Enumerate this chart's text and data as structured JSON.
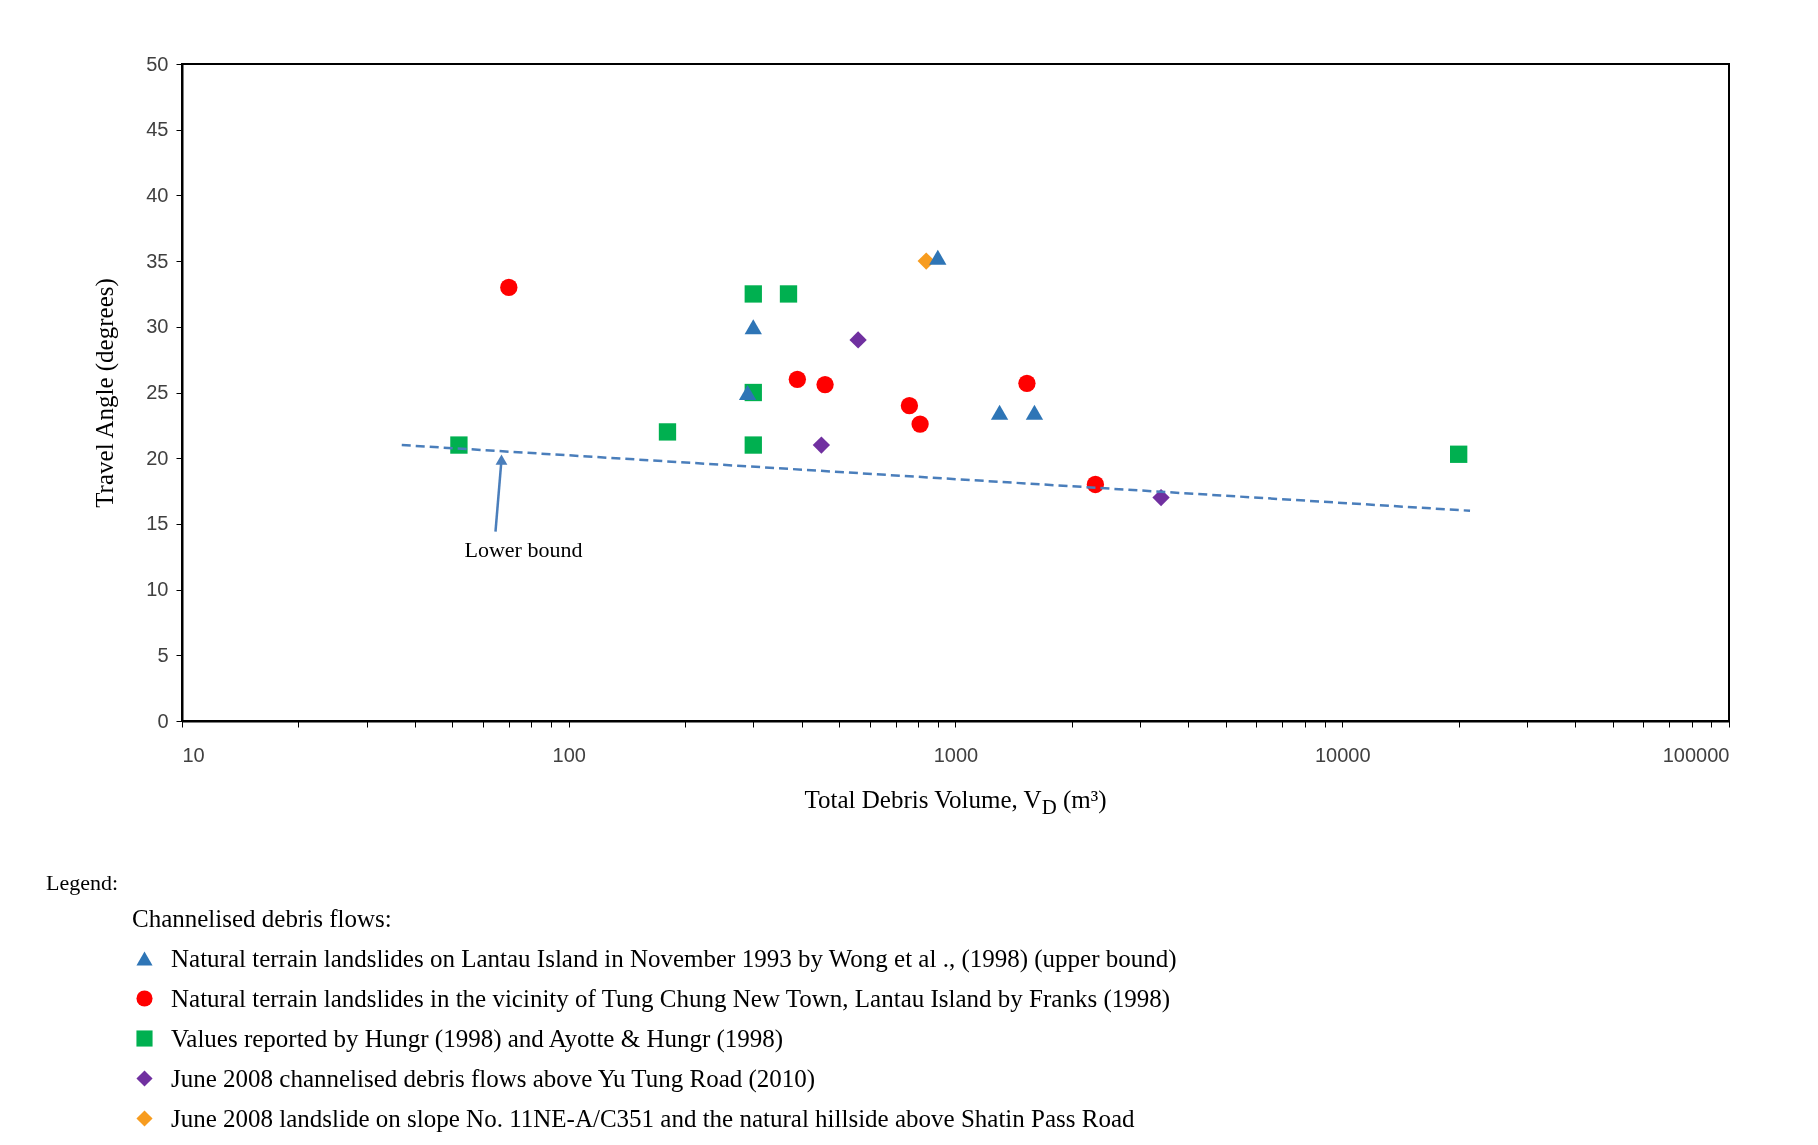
{
  "chart_data": {
    "type": "scatter",
    "xlabel": "Total Debris Volume, V$_{D}$ (m³)",
    "ylabel": "Travel Angle (degrees)",
    "legend_title": "Channelised debris flows:",
    "legend": "bottom",
    "log": "x",
    "grid": false,
    "xlim": [
      10,
      100000
    ],
    "ylim": [
      0,
      50
    ],
    "xticks": [
      10,
      {
        "value": 20,
        "label": null
      },
      {
        "value": 30,
        "label": null
      },
      {
        "value": 40,
        "label": null
      },
      {
        "value": 50,
        "label": null
      },
      {
        "value": 60,
        "label": null
      },
      {
        "value": 70,
        "label": null
      },
      {
        "value": 80,
        "label": null
      },
      {
        "value": 90,
        "label": null
      },
      100,
      {
        "value": 200,
        "label": null
      },
      {
        "value": 300,
        "label": null
      },
      {
        "value": 400,
        "label": null
      },
      {
        "value": 500,
        "label": null
      },
      {
        "value": 600,
        "label": null
      },
      {
        "value": 700,
        "label": null
      },
      {
        "value": 800,
        "label": null
      },
      {
        "value": 900,
        "label": null
      },
      1000,
      {
        "value": 2000,
        "label": null
      },
      {
        "value": 3000,
        "label": null
      },
      {
        "value": 4000,
        "label": null
      },
      {
        "value": 5000,
        "label": null
      },
      {
        "value": 6000,
        "label": null
      },
      {
        "value": 7000,
        "label": null
      },
      {
        "value": 8000,
        "label": null
      },
      {
        "value": 9000,
        "label": null
      },
      10000,
      {
        "value": 20000,
        "label": null
      },
      {
        "value": 30000,
        "label": null
      },
      {
        "value": 40000,
        "label": null
      },
      {
        "value": 50000,
        "label": null
      },
      {
        "value": 60000,
        "label": null
      },
      {
        "value": 70000,
        "label": null
      },
      {
        "value": 80000,
        "label": null
      },
      {
        "value": 90000,
        "label": null
      },
      100000
    ],
    "yticks": [
      0,
      5,
      10,
      15,
      20,
      25,
      30,
      35,
      40,
      45,
      50
    ],
    "series": [
      {
        "name": "Natural terrain landslides on Lantau Island in November 1993 by Wong et al ., (1998) (upper bound)",
        "color": "#2e75b6",
        "marker": "triangle",
        "x": [
          300,
          290,
          900,
          1300,
          1600
        ],
        "values": [
          30,
          25,
          35.3,
          23.5,
          23.5
        ]
      },
      {
        "name": "Natural terrain landslides in the vicinity of Tung Chung New Town, Lantau Island by Franks (1998)",
        "color": "#ff0000",
        "marker": "circle",
        "x": [
          70,
          390,
          460,
          760,
          810,
          1530,
          2300
        ],
        "values": [
          33,
          26,
          25.6,
          24,
          22.6,
          25.7,
          18
        ]
      },
      {
        "name": "Values reported by Hungr (1998) and Ayotte & Hungr (1998)",
        "color": "#00b050",
        "marker": "square",
        "x": [
          52,
          180,
          300,
          370,
          300,
          300,
          20000
        ],
        "values": [
          21,
          22,
          32.5,
          32.5,
          25,
          21,
          20.3
        ]
      },
      {
        "name": "June 2008 channelised debris flows above Yu Tung Road (2010)",
        "color": "#7030a0",
        "marker": "diamond",
        "x": [
          560,
          450,
          3400
        ],
        "values": [
          29,
          21,
          17
        ]
      },
      {
        "name": "June 2008 landslide on slope No. 11NE-A/C351 and the natural hillside above Shatin Pass Road",
        "color": "#f79c1f",
        "marker": "diamond",
        "x": [
          840
        ],
        "values": [
          35
        ]
      },
      {
        "type": "line",
        "color": "#4a7ebb",
        "line_style": "dashed",
        "x": [
          37,
          21400
        ],
        "values": [
          21,
          16
        ]
      }
    ],
    "annotations": [
      {
        "text": "Lower bound",
        "x": 67,
        "y": 20.5
      },
      "Legend:"
    ]
  }
}
